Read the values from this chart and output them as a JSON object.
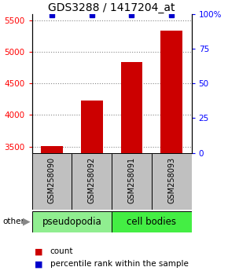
{
  "title": "GDS3288 / 1417204_at",
  "samples": [
    "GSM258090",
    "GSM258092",
    "GSM258091",
    "GSM258093"
  ],
  "counts": [
    3510,
    4230,
    4840,
    5340
  ],
  "percentiles": [
    99,
    99,
    99,
    99
  ],
  "ylim_left": [
    3400,
    5600
  ],
  "yticks_left": [
    3500,
    4000,
    4500,
    5000,
    5500
  ],
  "ylim_right": [
    0,
    100
  ],
  "yticks_right": [
    0,
    25,
    50,
    75,
    100
  ],
  "ytick_labels_right": [
    "0",
    "25",
    "50",
    "75",
    "100%"
  ],
  "bar_color": "#CC0000",
  "dot_color": "#0000CC",
  "bar_width": 0.55,
  "title_fontsize": 10,
  "tick_fontsize": 7.5,
  "sample_fontsize": 7,
  "group_label_fontsize": 8.5,
  "legend_fontsize": 7.5,
  "group_colors": [
    "#90EE90",
    "#44EE44"
  ],
  "group_labels": [
    "pseudopodia",
    "cell bodies"
  ],
  "sample_box_color": "#C0C0C0",
  "other_label": "other",
  "legend_count_label": "count",
  "legend_pct_label": "percentile rank within the sample"
}
